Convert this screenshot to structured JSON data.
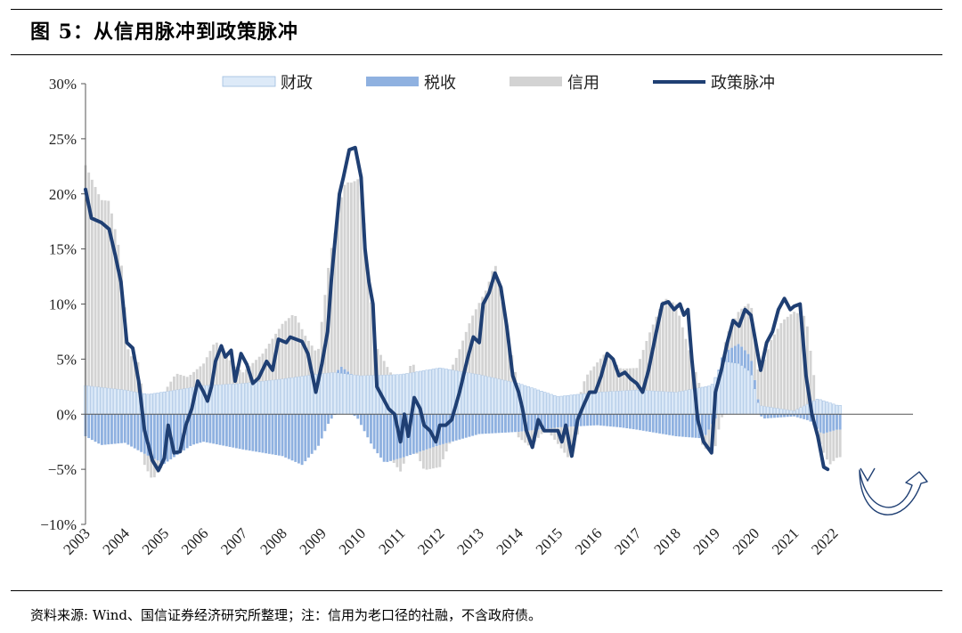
{
  "title": "图 5：从信用脉冲到政策脉冲",
  "source": "资料来源: Wind、国信证券经济研究所整理；注：信用为老口径的社融，不含政府债。",
  "colors": {
    "fiscal": "#ddeaf8",
    "fiscal_edge": "#9dbce0",
    "tax": "#8fb1e0",
    "credit": "#d3d3d3",
    "policy": "#1f3f73"
  },
  "chart_data": {
    "type": "bar",
    "stacked": true,
    "title": "",
    "xlabel": "",
    "ylabel": "",
    "ylim": [
      -10,
      30
    ],
    "yticks": [
      -10,
      -5,
      0,
      5,
      10,
      15,
      20,
      25,
      30
    ],
    "ytick_labels": [
      "−10%",
      "−5%",
      "0%",
      "5%",
      "10%",
      "15%",
      "20%",
      "25%",
      "30%"
    ],
    "x_start": 2003.0,
    "x_step": 0.083333,
    "xticks": [
      "2003",
      "2004",
      "2005",
      "2006",
      "2007",
      "2008",
      "2009",
      "2010",
      "2011",
      "2012",
      "2013",
      "2014",
      "2015",
      "2016",
      "2017",
      "2018",
      "2019",
      "2020",
      "2021",
      "2022"
    ],
    "legend_position": "top",
    "grid": false,
    "annotation": "rebound-arrow",
    "series": [
      {
        "name": "财政",
        "kind": "bar",
        "anchors": [
          [
            2003.0,
            2.6
          ],
          [
            2004.0,
            2.2
          ],
          [
            2004.6,
            1.8
          ],
          [
            2006.0,
            2.6
          ],
          [
            2007.0,
            2.8
          ],
          [
            2008.0,
            3.2
          ],
          [
            2008.8,
            3.6
          ],
          [
            2009.3,
            3.8
          ],
          [
            2010.0,
            3.5
          ],
          [
            2011.0,
            3.6
          ],
          [
            2012.0,
            4.2
          ],
          [
            2013.0,
            3.6
          ],
          [
            2014.0,
            2.8
          ],
          [
            2015.0,
            1.6
          ],
          [
            2016.0,
            2.0
          ],
          [
            2017.0,
            2.2
          ],
          [
            2018.0,
            2.0
          ],
          [
            2018.9,
            2.6
          ],
          [
            2019.2,
            4.8
          ],
          [
            2019.6,
            4.6
          ],
          [
            2019.9,
            3.8
          ],
          [
            2020.1,
            0.8
          ],
          [
            2021.0,
            0.3
          ],
          [
            2021.6,
            1.4
          ],
          [
            2022.1,
            0.8
          ]
        ]
      },
      {
        "name": "税收",
        "kind": "bar",
        "anchors": [
          [
            2003.0,
            -2.0
          ],
          [
            2003.4,
            -2.8
          ],
          [
            2004.0,
            -2.6
          ],
          [
            2004.6,
            -3.8
          ],
          [
            2005.0,
            -4.5
          ],
          [
            2005.7,
            -2.8
          ],
          [
            2006.0,
            -2.5
          ],
          [
            2007.0,
            -3.2
          ],
          [
            2008.0,
            -3.8
          ],
          [
            2008.5,
            -4.6
          ],
          [
            2008.9,
            -3.0
          ],
          [
            2009.2,
            -0.6
          ],
          [
            2009.5,
            0.6
          ],
          [
            2009.9,
            -0.3
          ],
          [
            2010.3,
            -3.0
          ],
          [
            2010.6,
            -4.4
          ],
          [
            2011.0,
            -4.0
          ],
          [
            2011.5,
            -3.4
          ],
          [
            2012.0,
            -2.8
          ],
          [
            2012.5,
            -2.3
          ],
          [
            2013.0,
            -1.8
          ],
          [
            2014.0,
            -1.6
          ],
          [
            2015.0,
            -1.2
          ],
          [
            2016.0,
            -1.0
          ],
          [
            2016.6,
            -1.2
          ],
          [
            2017.0,
            -1.4
          ],
          [
            2018.0,
            -2.0
          ],
          [
            2018.7,
            -2.2
          ],
          [
            2019.2,
            0.8
          ],
          [
            2019.6,
            1.8
          ],
          [
            2019.9,
            1.4
          ],
          [
            2020.2,
            -0.4
          ],
          [
            2021.0,
            -0.2
          ],
          [
            2021.4,
            -0.6
          ],
          [
            2021.7,
            -1.8
          ],
          [
            2022.1,
            -1.4
          ]
        ]
      },
      {
        "name": "信用",
        "kind": "bar",
        "anchors": [
          [
            2003.0,
            20.0
          ],
          [
            2003.4,
            17.0
          ],
          [
            2003.6,
            17.0
          ],
          [
            2003.9,
            12.0
          ],
          [
            2004.1,
            3.0
          ],
          [
            2004.3,
            3.5
          ],
          [
            2004.5,
            -1.0
          ],
          [
            2004.7,
            -2.0
          ],
          [
            2005.0,
            0.0
          ],
          [
            2005.3,
            1.5
          ],
          [
            2005.6,
            1.0
          ],
          [
            2006.0,
            2.0
          ],
          [
            2006.3,
            4.0
          ],
          [
            2006.7,
            2.0
          ],
          [
            2007.0,
            1.0
          ],
          [
            2007.5,
            2.5
          ],
          [
            2008.0,
            5.0
          ],
          [
            2008.3,
            5.8
          ],
          [
            2008.6,
            3.5
          ],
          [
            2008.9,
            1.8
          ],
          [
            2009.2,
            10.5
          ],
          [
            2009.6,
            17.0
          ],
          [
            2010.0,
            18.0
          ],
          [
            2010.2,
            8.0
          ],
          [
            2010.4,
            2.5
          ],
          [
            2010.7,
            0.5
          ],
          [
            2011.0,
            -1.2
          ],
          [
            2011.3,
            1.0
          ],
          [
            2011.6,
            -1.8
          ],
          [
            2012.0,
            -2.0
          ],
          [
            2012.4,
            1.0
          ],
          [
            2012.8,
            5.0
          ],
          [
            2013.2,
            8.0
          ],
          [
            2013.4,
            10.5
          ],
          [
            2013.8,
            3.0
          ],
          [
            2014.0,
            -0.5
          ],
          [
            2014.3,
            -1.5
          ],
          [
            2014.7,
            0.0
          ],
          [
            2015.0,
            -1.5
          ],
          [
            2015.3,
            -3.0
          ],
          [
            2015.7,
            1.5
          ],
          [
            2016.2,
            3.5
          ],
          [
            2016.6,
            2.0
          ],
          [
            2017.0,
            2.0
          ],
          [
            2017.3,
            5.0
          ],
          [
            2017.7,
            8.5
          ],
          [
            2018.0,
            8.0
          ],
          [
            2018.3,
            4.0
          ],
          [
            2018.7,
            -1.0
          ],
          [
            2019.0,
            -2.5
          ],
          [
            2019.3,
            1.5
          ],
          [
            2019.6,
            3.0
          ],
          [
            2019.9,
            5.0
          ],
          [
            2020.1,
            2.5
          ],
          [
            2020.4,
            6.0
          ],
          [
            2020.7,
            8.0
          ],
          [
            2021.0,
            9.0
          ],
          [
            2021.3,
            8.0
          ],
          [
            2021.6,
            -0.5
          ],
          [
            2021.9,
            -3.0
          ],
          [
            2022.1,
            -2.5
          ]
        ]
      },
      {
        "name": "政策脉冲",
        "kind": "line",
        "anchors": [
          [
            2003.0,
            20.4
          ],
          [
            2003.15,
            17.8
          ],
          [
            2003.4,
            17.4
          ],
          [
            2003.6,
            16.8
          ],
          [
            2003.75,
            14.5
          ],
          [
            2003.9,
            12.0
          ],
          [
            2004.05,
            6.5
          ],
          [
            2004.2,
            6.0
          ],
          [
            2004.35,
            3.0
          ],
          [
            2004.5,
            -1.5
          ],
          [
            2004.7,
            -4.2
          ],
          [
            2004.85,
            -5.1
          ],
          [
            2005.0,
            -4.0
          ],
          [
            2005.1,
            -1.0
          ],
          [
            2005.25,
            -3.5
          ],
          [
            2005.4,
            -3.4
          ],
          [
            2005.55,
            -1.0
          ],
          [
            2005.7,
            0.5
          ],
          [
            2005.85,
            3.0
          ],
          [
            2006.0,
            2.0
          ],
          [
            2006.1,
            1.2
          ],
          [
            2006.2,
            2.5
          ],
          [
            2006.3,
            4.8
          ],
          [
            2006.45,
            6.2
          ],
          [
            2006.55,
            5.2
          ],
          [
            2006.7,
            5.8
          ],
          [
            2006.8,
            3.0
          ],
          [
            2006.95,
            5.5
          ],
          [
            2007.1,
            4.5
          ],
          [
            2007.25,
            2.8
          ],
          [
            2007.4,
            3.3
          ],
          [
            2007.6,
            4.8
          ],
          [
            2007.75,
            4.0
          ],
          [
            2007.9,
            6.8
          ],
          [
            2008.1,
            6.5
          ],
          [
            2008.2,
            7.0
          ],
          [
            2008.35,
            6.8
          ],
          [
            2008.5,
            6.6
          ],
          [
            2008.65,
            5.5
          ],
          [
            2008.85,
            2.0
          ],
          [
            2009.0,
            4.5
          ],
          [
            2009.15,
            7.5
          ],
          [
            2009.25,
            12.5
          ],
          [
            2009.45,
            20.0
          ],
          [
            2009.55,
            21.5
          ],
          [
            2009.7,
            24.0
          ],
          [
            2009.85,
            24.2
          ],
          [
            2010.0,
            21.5
          ],
          [
            2010.1,
            15.0
          ],
          [
            2010.2,
            12.0
          ],
          [
            2010.3,
            10.0
          ],
          [
            2010.4,
            2.5
          ],
          [
            2010.55,
            1.5
          ],
          [
            2010.7,
            0.5
          ],
          [
            2010.85,
            0.0
          ],
          [
            2011.0,
            -2.5
          ],
          [
            2011.1,
            0.0
          ],
          [
            2011.2,
            -2.0
          ],
          [
            2011.35,
            1.5
          ],
          [
            2011.5,
            0.5
          ],
          [
            2011.6,
            -1.0
          ],
          [
            2011.75,
            -1.5
          ],
          [
            2011.9,
            -2.5
          ],
          [
            2012.0,
            -1.0
          ],
          [
            2012.15,
            -1.0
          ],
          [
            2012.3,
            -0.5
          ],
          [
            2012.5,
            2.0
          ],
          [
            2012.7,
            5.0
          ],
          [
            2012.85,
            7.0
          ],
          [
            2013.0,
            6.5
          ],
          [
            2013.1,
            10.0
          ],
          [
            2013.25,
            11.0
          ],
          [
            2013.4,
            12.8
          ],
          [
            2013.55,
            11.5
          ],
          [
            2013.7,
            8.0
          ],
          [
            2013.85,
            3.5
          ],
          [
            2014.0,
            2.0
          ],
          [
            2014.1,
            0.5
          ],
          [
            2014.2,
            -1.5
          ],
          [
            2014.35,
            -3.0
          ],
          [
            2014.5,
            -0.5
          ],
          [
            2014.65,
            -1.5
          ],
          [
            2014.8,
            -1.5
          ],
          [
            2015.0,
            -1.5
          ],
          [
            2015.1,
            -2.5
          ],
          [
            2015.2,
            -1.0
          ],
          [
            2015.35,
            -3.8
          ],
          [
            2015.5,
            -0.5
          ],
          [
            2015.65,
            0.8
          ],
          [
            2015.8,
            2.0
          ],
          [
            2015.95,
            2.0
          ],
          [
            2016.1,
            3.5
          ],
          [
            2016.25,
            5.5
          ],
          [
            2016.4,
            5.0
          ],
          [
            2016.55,
            3.5
          ],
          [
            2016.7,
            3.8
          ],
          [
            2016.85,
            3.2
          ],
          [
            2017.0,
            2.8
          ],
          [
            2017.15,
            2.0
          ],
          [
            2017.3,
            4.0
          ],
          [
            2017.5,
            7.5
          ],
          [
            2017.65,
            10.0
          ],
          [
            2017.8,
            10.2
          ],
          [
            2017.95,
            9.5
          ],
          [
            2018.1,
            10.0
          ],
          [
            2018.2,
            9.0
          ],
          [
            2018.3,
            9.5
          ],
          [
            2018.4,
            5.0
          ],
          [
            2018.55,
            -0.5
          ],
          [
            2018.7,
            -2.5
          ],
          [
            2018.9,
            -3.5
          ],
          [
            2019.0,
            2.0
          ],
          [
            2019.15,
            4.0
          ],
          [
            2019.3,
            6.5
          ],
          [
            2019.45,
            8.5
          ],
          [
            2019.6,
            8.0
          ],
          [
            2019.75,
            9.5
          ],
          [
            2019.9,
            9.0
          ],
          [
            2020.0,
            7.0
          ],
          [
            2020.15,
            4.0
          ],
          [
            2020.3,
            6.5
          ],
          [
            2020.45,
            7.5
          ],
          [
            2020.6,
            9.5
          ],
          [
            2020.75,
            10.5
          ],
          [
            2020.9,
            9.5
          ],
          [
            2021.0,
            9.8
          ],
          [
            2021.15,
            10.0
          ],
          [
            2021.3,
            3.5
          ],
          [
            2021.45,
            0.0
          ],
          [
            2021.6,
            -2.0
          ],
          [
            2021.75,
            -4.8
          ],
          [
            2021.85,
            -5.0
          ]
        ]
      }
    ]
  }
}
